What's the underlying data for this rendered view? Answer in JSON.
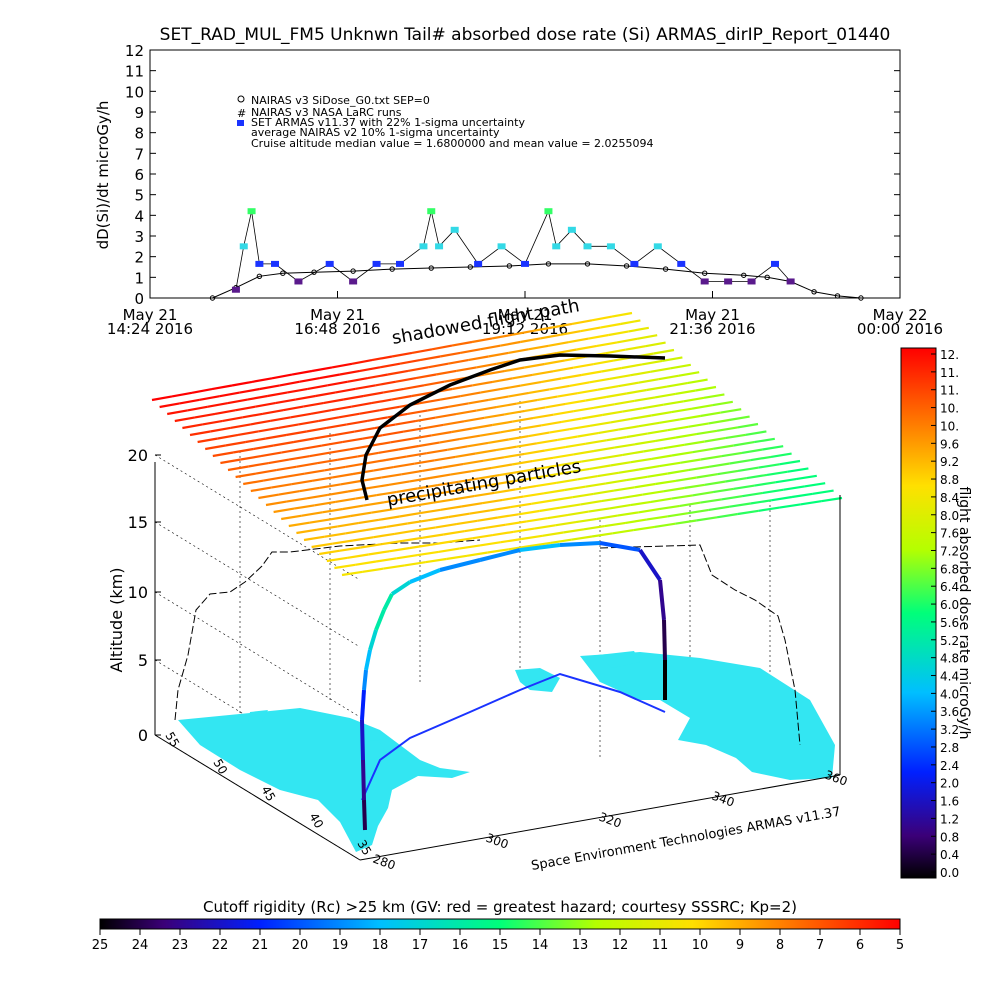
{
  "header": {
    "title": "SET_RAD_MUL_FM5 Unknwn Tail#  absorbed dose rate (Si) ARMAS_dirIP_Report_01440"
  },
  "top_chart": {
    "ylabel": "dD(Si)/dt microGy/h",
    "yticks": [
      "0",
      "1",
      "2",
      "3",
      "4",
      "5",
      "6",
      "7",
      "8",
      "9",
      "10",
      "11",
      "12"
    ],
    "xticks": [
      {
        "l1": "May 21",
        "l2": "14:24 2016"
      },
      {
        "l1": "May 21",
        "l2": "16:48 2016"
      },
      {
        "l1": "May 21",
        "l2": "19:12 2016"
      },
      {
        "l1": "May 21",
        "l2": "21:36 2016"
      },
      {
        "l1": "May 22",
        "l2": "00:00 2016"
      }
    ],
    "legend": [
      "NAIRAS v3 SiDose_G0.txt SEP=0",
      "NAIRAS v3 NASA LaRC runs",
      "SET ARMAS v11.37 with 22% 1-sigma uncertainty",
      "average NAIRAS v2 10% 1-sigma uncertainty",
      "Cruise altitude median value =  1.6800000 and mean value =  2.0255094"
    ]
  },
  "annotations": {
    "shadowed": "shadowed flight path",
    "precip": "precipitating particles"
  },
  "plot3d": {
    "ylabel": "Altitude (km)",
    "zticks": [
      "0",
      "5",
      "10",
      "15",
      "20"
    ],
    "lat_ticks": [
      "55",
      "50",
      "45",
      "40",
      "35"
    ],
    "lon_ticks": [
      "280",
      "300",
      "320",
      "340",
      "360"
    ],
    "credit": "Space Environment Technologies ARMAS v11.37"
  },
  "right_colorbar": {
    "label": "flight absorbed dose rate microGy/h",
    "ticks": [
      "12.",
      "11.",
      "11.",
      "10.",
      "10.",
      "9.6",
      "9.2",
      "8.8",
      "8.4",
      "8.0",
      "7.6",
      "7.2",
      "6.8",
      "6.4",
      "6.0",
      "5.6",
      "5.2",
      "4.8",
      "4.4",
      "4.0",
      "3.6",
      "3.2",
      "2.8",
      "2.4",
      "2.0",
      "1.6",
      "1.2",
      "0.8",
      "0.4",
      "0.0"
    ]
  },
  "bottom_colorbar": {
    "title": "Cutoff rigidity (Rc) >25 km (GV: red = greatest hazard; courtesy SSSRC; Kp=2)",
    "ticks": [
      "25",
      "24",
      "23",
      "22",
      "21",
      "20",
      "19",
      "18",
      "17",
      "16",
      "15",
      "14",
      "13",
      "12",
      "11",
      "10",
      "9",
      "8",
      "7",
      "6",
      "5"
    ]
  },
  "colors": {
    "jet_low": "#000000",
    "jet_high": "#ff0000",
    "map_fill": "#33e6f2",
    "armas_blue": "#1a33ff",
    "armas_cyan": "#33d9e6",
    "armas_purple": "#5a1a8c",
    "armas_green": "#33ff66"
  },
  "chart_data": {
    "type": "scatter",
    "title": "SET_RAD_MUL_FM5 Unknwn Tail#  absorbed dose rate (Si) ARMAS_dirIP_Report_01440",
    "ylabel": "dD(Si)/dt microGy/h",
    "ylim": [
      0,
      12
    ],
    "xlim": [
      "May 21 14:24 2016",
      "May 22 00:00 2016"
    ],
    "series": [
      {
        "name": "NAIRAS v3 SiDose_G0.txt SEP=0",
        "x_hours": [
          15.2,
          15.5,
          15.8,
          16.1,
          16.5,
          17.0,
          17.5,
          18.0,
          18.5,
          19.0,
          19.5,
          20.0,
          20.5,
          21.0,
          21.5,
          22.0,
          22.3,
          22.6,
          22.9,
          23.2,
          23.5
        ],
        "values": [
          0.0,
          0.5,
          1.05,
          1.2,
          1.25,
          1.3,
          1.4,
          1.45,
          1.5,
          1.55,
          1.65,
          1.65,
          1.55,
          1.4,
          1.2,
          1.1,
          1.0,
          0.8,
          0.3,
          0.1,
          0.0
        ]
      },
      {
        "name": "SET ARMAS v11.37 with 22% 1-sigma uncertainty",
        "x_hours": [
          15.5,
          15.6,
          15.7,
          15.8,
          16.0,
          16.3,
          16.7,
          17.0,
          17.3,
          17.6,
          17.9,
          18.0,
          18.1,
          18.3,
          18.6,
          18.9,
          19.2,
          19.5,
          19.6,
          19.8,
          20.0,
          20.3,
          20.6,
          20.9,
          21.2,
          21.5,
          21.8,
          22.1,
          22.4,
          22.6
        ],
        "values": [
          0.4,
          2.5,
          4.2,
          1.65,
          1.65,
          0.8,
          1.65,
          0.8,
          1.65,
          1.65,
          2.5,
          4.2,
          2.5,
          3.3,
          1.65,
          2.5,
          1.65,
          4.2,
          2.5,
          3.3,
          2.5,
          2.5,
          1.65,
          2.5,
          1.65,
          0.8,
          0.8,
          0.8,
          1.65,
          0.8
        ]
      }
    ],
    "z_axis": {
      "label": "Altitude (km)",
      "range": [
        0,
        20
      ]
    },
    "cutoff_rigidity_range_GV": [
      25,
      5
    ],
    "dose_colorbar_range": [
      0.0,
      12.0
    ]
  }
}
